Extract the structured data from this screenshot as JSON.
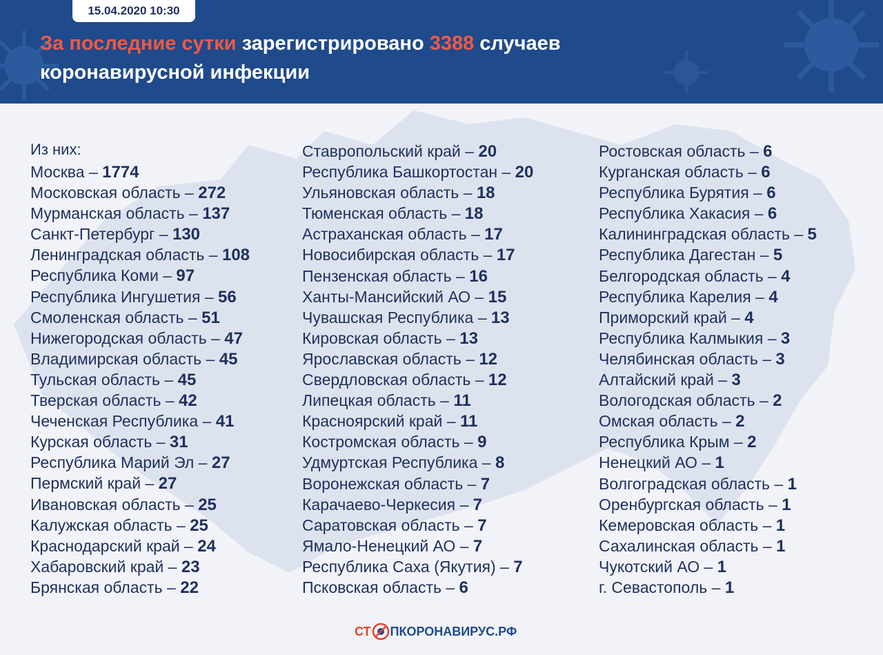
{
  "header": {
    "date": "15.04.2020 10:30",
    "headline_part1": "За последние сутки",
    "headline_part2": " зарегистрировано ",
    "headline_number": "3388",
    "headline_part3": " случаев",
    "headline_line2": "коронавирусной инфекции"
  },
  "intro": "Из них:",
  "columns": [
    [
      {
        "region": "Москва",
        "value": "1774"
      },
      {
        "region": "Московская область",
        "value": "272"
      },
      {
        "region": "Мурманская область",
        "value": "137"
      },
      {
        "region": "Санкт-Петербург",
        "value": "130"
      },
      {
        "region": "Ленинградская область",
        "value": "108"
      },
      {
        "region": "Республика Коми",
        "value": "97"
      },
      {
        "region": "Республика Ингушетия",
        "value": "56"
      },
      {
        "region": "Смоленская область",
        "value": "51"
      },
      {
        "region": "Нижегородская область",
        "value": "47"
      },
      {
        "region": "Владимирская область",
        "value": "45"
      },
      {
        "region": "Тульская область",
        "value": "45"
      },
      {
        "region": "Тверская область",
        "value": "42"
      },
      {
        "region": "Чеченская Республика",
        "value": "41"
      },
      {
        "region": "Курская область",
        "value": "31"
      },
      {
        "region": "Республика Марий Эл",
        "value": "27"
      },
      {
        "region": "Пермский край",
        "value": "27"
      },
      {
        "region": "Ивановская область",
        "value": "25"
      },
      {
        "region": "Калужская область",
        "value": "25"
      },
      {
        "region": "Краснодарский край",
        "value": "24"
      },
      {
        "region": "Хабаровский край",
        "value": "23"
      },
      {
        "region": "Брянская область",
        "value": "22"
      }
    ],
    [
      {
        "region": "Ставропольский край",
        "value": "20"
      },
      {
        "region": "Республика Башкортостан",
        "value": "20"
      },
      {
        "region": "Ульяновская область",
        "value": "18"
      },
      {
        "region": "Тюменская область",
        "value": "18"
      },
      {
        "region": "Астраханская область",
        "value": "17"
      },
      {
        "region": "Новосибирская область",
        "value": "17"
      },
      {
        "region": "Пензенская область",
        "value": "16"
      },
      {
        "region": "Ханты-Мансийский АО",
        "value": "15"
      },
      {
        "region": "Чувашская Республика",
        "value": "13"
      },
      {
        "region": "Кировская область",
        "value": "13"
      },
      {
        "region": "Ярославская область",
        "value": "12"
      },
      {
        "region": "Свердловская область",
        "value": "12"
      },
      {
        "region": "Липецкая область",
        "value": "11"
      },
      {
        "region": "Красноярский край",
        "value": "11"
      },
      {
        "region": "Костромская область",
        "value": "9"
      },
      {
        "region": "Удмуртская Республика",
        "value": "8"
      },
      {
        "region": "Воронежская область",
        "value": "7"
      },
      {
        "region": "Карачаево-Черкесия",
        "value": "7"
      },
      {
        "region": "Саратовская область",
        "value": "7"
      },
      {
        "region": "Ямало-Ненецкий АО",
        "value": "7"
      },
      {
        "region": "Республика Саха (Якутия)",
        "value": "7"
      },
      {
        "region": "Псковская область",
        "value": "6"
      }
    ],
    [
      {
        "region": "Ростовская область",
        "value": "6"
      },
      {
        "region": "Курганская область",
        "value": "6"
      },
      {
        "region": "Республика Бурятия",
        "value": "6"
      },
      {
        "region": "Республика Хакасия",
        "value": "6"
      },
      {
        "region": "Калининградская область",
        "value": "5"
      },
      {
        "region": "Республика Дагестан",
        "value": "5"
      },
      {
        "region": "Белгородская область",
        "value": "4"
      },
      {
        "region": "Республика Карелия",
        "value": "4"
      },
      {
        "region": "Приморский край",
        "value": "4"
      },
      {
        "region": "Республика Калмыкия",
        "value": "3"
      },
      {
        "region": "Челябинская область",
        "value": "3"
      },
      {
        "region": "Алтайский край",
        "value": "3"
      },
      {
        "region": "Вологодская область",
        "value": "2"
      },
      {
        "region": "Омская область",
        "value": "2"
      },
      {
        "region": "Республика Крым",
        "value": "2"
      },
      {
        "region": "Ненецкий АО",
        "value": "1"
      },
      {
        "region": "Волгоградская область",
        "value": "1"
      },
      {
        "region": "Оренбургская область",
        "value": "1"
      },
      {
        "region": "Кемеровская область",
        "value": "1"
      },
      {
        "region": "Сахалинская область",
        "value": "1"
      },
      {
        "region": "Чукотский АО",
        "value": "1"
      },
      {
        "region": "г. Севастополь",
        "value": "1"
      }
    ]
  ],
  "separator": " – ",
  "footer": {
    "logo_part1": "СТ",
    "logo_part2": "ПКОРОНАВИРУС.РФ"
  },
  "colors": {
    "header_bg": "#1f4a8c",
    "accent": "#ee5a45",
    "text": "#1f2f5e",
    "map": "#dde3ee"
  }
}
